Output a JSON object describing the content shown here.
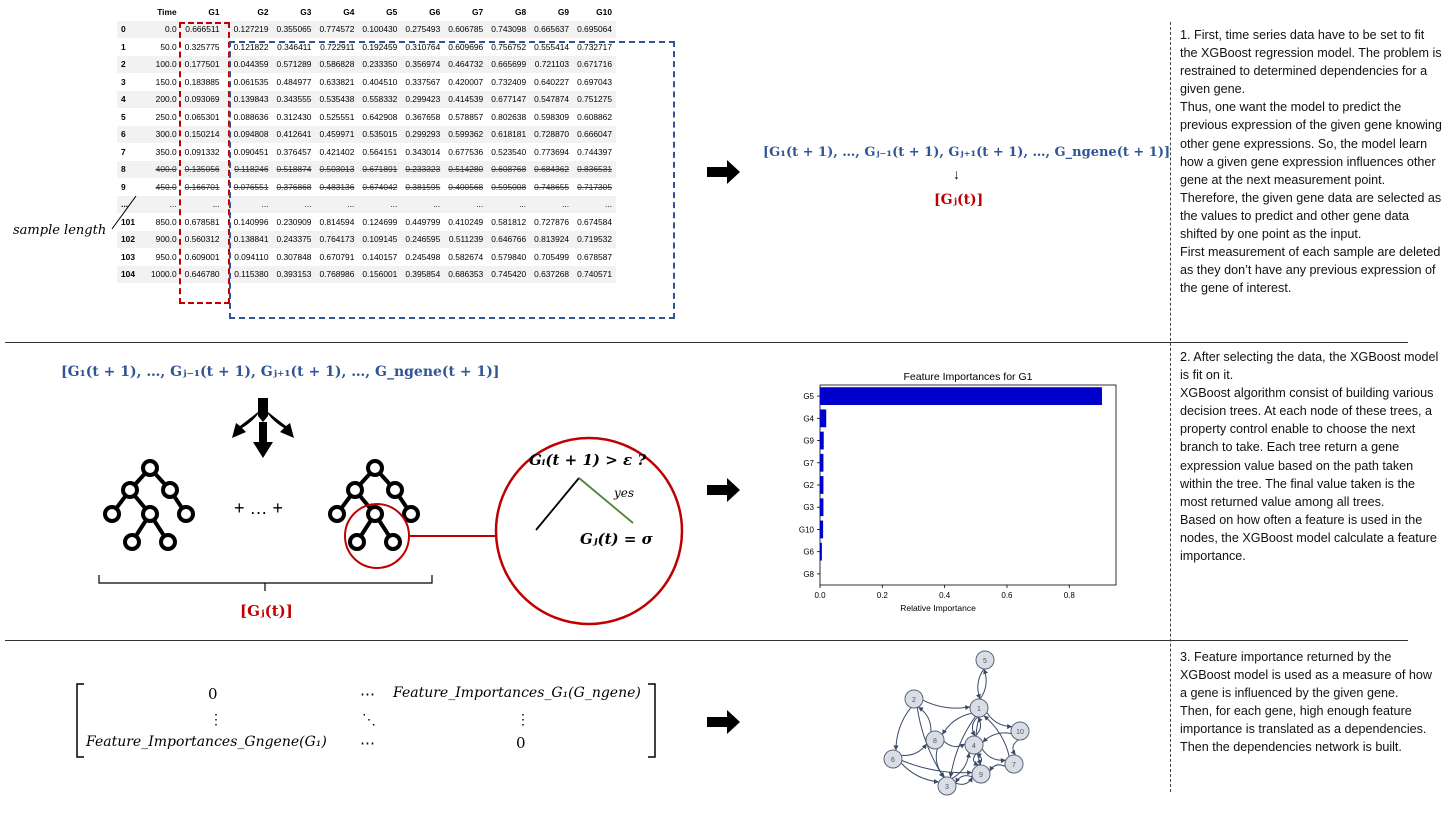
{
  "section1": {
    "table": {
      "columns": [
        "",
        "Time",
        "G1",
        "G2",
        "G3",
        "G4",
        "G5",
        "G6",
        "G7",
        "G8",
        "G9",
        "G10"
      ],
      "rows": [
        [
          "0",
          "0.0",
          "0.666511",
          "0.127219",
          "0.355065",
          "0.774572",
          "0.100430",
          "0.275493",
          "0.606785",
          "0.743098",
          "0.665637",
          "0.695064"
        ],
        [
          "1",
          "50.0",
          "0.325775",
          "0.121822",
          "0.346411",
          "0.722911",
          "0.192459",
          "0.310764",
          "0.609696",
          "0.756752",
          "0.555414",
          "0.732717"
        ],
        [
          "2",
          "100.0",
          "0.177501",
          "0.044359",
          "0.571289",
          "0.586828",
          "0.233350",
          "0.356974",
          "0.464732",
          "0.665699",
          "0.721103",
          "0.671716"
        ],
        [
          "3",
          "150.0",
          "0.183885",
          "0.061535",
          "0.484977",
          "0.633821",
          "0.404510",
          "0.337567",
          "0.420007",
          "0.732409",
          "0.640227",
          "0.697043"
        ],
        [
          "4",
          "200.0",
          "0.093069",
          "0.139843",
          "0.343555",
          "0.535438",
          "0.558332",
          "0.299423",
          "0.414539",
          "0.677147",
          "0.547874",
          "0.751275"
        ],
        [
          "5",
          "250.0",
          "0.065301",
          "0.088636",
          "0.312430",
          "0.525551",
          "0.642908",
          "0.367658",
          "0.578857",
          "0.802638",
          "0.598309",
          "0.608862"
        ],
        [
          "6",
          "300.0",
          "0.150214",
          "0.094808",
          "0.412641",
          "0.459971",
          "0.535015",
          "0.299293",
          "0.599362",
          "0.618181",
          "0.728870",
          "0.666047"
        ],
        [
          "7",
          "350.0",
          "0.091332",
          "0.090451",
          "0.376457",
          "0.421402",
          "0.564151",
          "0.343014",
          "0.677536",
          "0.523540",
          "0.773694",
          "0.744397"
        ],
        [
          "8",
          "400.0",
          "0.135056",
          "0.118246",
          "0.518874",
          "0.503013",
          "0.671891",
          "0.233323",
          "0.514280",
          "0.608768",
          "0.684362",
          "0.836531"
        ],
        [
          "9",
          "450.0",
          "0.166701",
          "0.076551",
          "0.376868",
          "0.483136",
          "0.674042",
          "0.381595",
          "0.400568",
          "0.595008",
          "0.748655",
          "0.717305"
        ],
        [
          "...",
          "...",
          "...",
          "...",
          "...",
          "...",
          "...",
          "...",
          "...",
          "...",
          "...",
          "..."
        ],
        [
          "101",
          "850.0",
          "0.678581",
          "0.140996",
          "0.230909",
          "0.814594",
          "0.124699",
          "0.449799",
          "0.410249",
          "0.581812",
          "0.727876",
          "0.674584"
        ],
        [
          "102",
          "900.0",
          "0.560312",
          "0.138841",
          "0.243375",
          "0.764173",
          "0.109145",
          "0.246595",
          "0.511239",
          "0.646766",
          "0.813924",
          "0.719532"
        ],
        [
          "103",
          "950.0",
          "0.609001",
          "0.094110",
          "0.307848",
          "0.670791",
          "0.140157",
          "0.245498",
          "0.582674",
          "0.579840",
          "0.705499",
          "0.678587"
        ],
        [
          "104",
          "1000.0",
          "0.646780",
          "0.115380",
          "0.393153",
          "0.768986",
          "0.156001",
          "0.395854",
          "0.686353",
          "0.745420",
          "0.637268",
          "0.740571"
        ]
      ]
    },
    "sample_length_label": "sample length",
    "input_formula": "[G₁(t + 1), …, Gⱼ₋₁(t + 1), Gⱼ₊₁(t + 1), …, G_ngene(t + 1)]",
    "down_arrow": "↓",
    "target_formula": "[Gⱼ(t)]",
    "description": [
      "1. First, time series data have to be set to fit the XGBoost regression model. The problem is restrained to determined dependencies for a given gene.",
      "Thus, one want the model to predict the previous expression of the given gene knowing other gene expressions. So, the model learn how a given gene expression influences other gene at the next measurement point.",
      "Therefore, the given gene data are selected as the values to predict and other gene data shifted by one point as the input.",
      "First measurement of each sample are deleted as they don’t have any previous expression of the gene of interest."
    ]
  },
  "section2": {
    "input_formula": "[G₁(t + 1), …, Gⱼ₋₁(t + 1), Gⱼ₊₁(t + 1), …, G_ngene(t + 1)]",
    "plus_text": "+ … +",
    "target_formula": "[Gⱼ(t)]",
    "node_condition": "Gᵢ(t + 1) >  ε ?",
    "yes_label": "yes",
    "leaf_value": "Gⱼ(t)  =  σ",
    "description": [
      "2. After selecting the data, the XGBoost model is fit on it.",
      "XGBoost algorithm consist of building various decision trees. At each node of these trees, a property control enable to choose the next branch to take. Each tree return a gene expression value based on the path taken within the tree. The final value taken is the most returned value among all trees.",
      "Based on how often a feature is used in the nodes, the XGBoost model calculate a feature importance."
    ]
  },
  "chart_data": {
    "type": "bar",
    "orientation": "horizontal",
    "title": "Feature Importances for G1",
    "xlabel": "Relative Importance",
    "ylabel": "",
    "categories": [
      "G5",
      "G4",
      "G9",
      "G7",
      "G2",
      "G3",
      "G10",
      "G6",
      "G8"
    ],
    "values": [
      0.905,
      0.02,
      0.012,
      0.011,
      0.011,
      0.011,
      0.01,
      0.006,
      0.0
    ],
    "xlim": [
      0,
      0.95
    ],
    "xticks": [
      "0.0",
      "0.2",
      "0.4",
      "0.6",
      "0.8"
    ],
    "bar_color": "#0000cc",
    "grid": false
  },
  "section3": {
    "matrix": {
      "top_left": "0",
      "top_mid": "⋯",
      "top_right": "Feature_Importances_G₁(G_ngene)",
      "mid_left": "⋮",
      "mid_mid": "⋱",
      "mid_right": "⋮",
      "bot_left": "Feature_Importances_Gngene(G₁)",
      "bot_mid": "⋯",
      "bot_right": "0"
    },
    "network_nodes": [
      "1",
      "2",
      "3",
      "4",
      "5",
      "6",
      "7",
      "8",
      "9",
      "10"
    ],
    "description": [
      "3. Feature importance returned by the XGBoost model is used as a measure of how a gene is influenced by the given gene.",
      "Then, for each gene, high enough feature importance is translated as a dependencies.",
      "Then the dependencies network is built."
    ]
  },
  "colors": {
    "blue": "#2f5597",
    "red": "#c00000",
    "bar": "#0000cc",
    "branch_yes": "#548235"
  }
}
